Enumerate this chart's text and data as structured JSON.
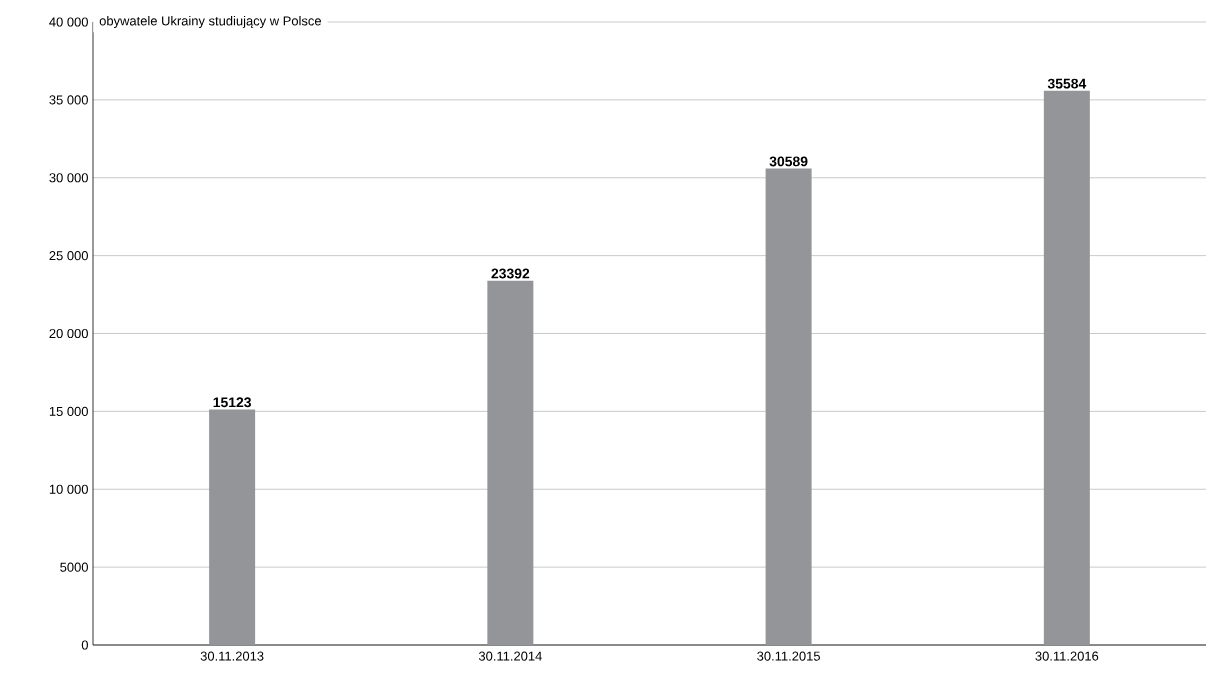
{
  "chart_data": {
    "type": "bar",
    "title": "obywatele Ukrainy studiujący w Polsce",
    "categories": [
      "30.11.2013",
      "30.11.2014",
      "30.11.2015",
      "30.11.2016"
    ],
    "values": [
      15123,
      23392,
      30589,
      35584
    ],
    "color": "#939598",
    "ylim": [
      0,
      40000
    ],
    "yticks": [
      0,
      5000,
      {
        "value": 10000,
        "label": "10 000"
      },
      {
        "value": 15000,
        "label": "15 000"
      },
      {
        "value": 20000,
        "label": "20 000"
      },
      {
        "value": 25000,
        "label": "25 000"
      },
      {
        "value": 30000,
        "label": "30 000"
      },
      {
        "value": 35000,
        "label": "35 000"
      },
      {
        "value": 40000,
        "label": "40 000"
      }
    ],
    "grid": "y",
    "data_labels": true
  }
}
